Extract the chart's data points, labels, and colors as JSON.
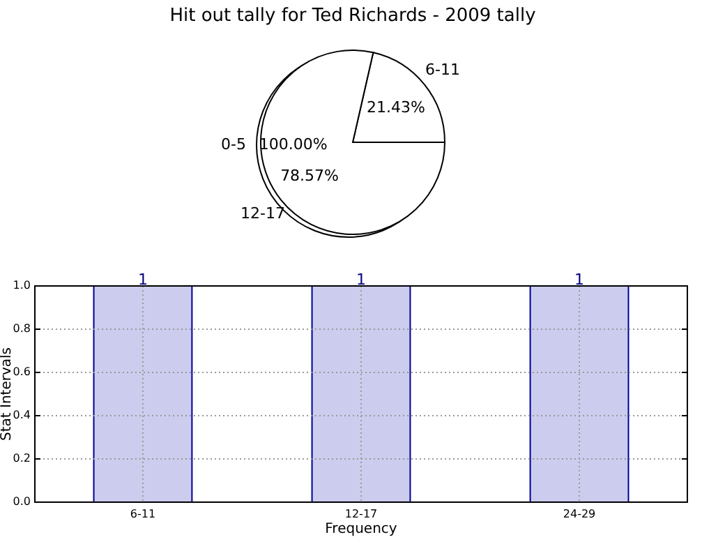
{
  "chart_data": [
    {
      "type": "pie",
      "title": "Hit out tally for Ted Richards - 2009 tally",
      "categories": [
        "0-5"
      ],
      "values": [
        100
      ],
      "value_labels": [
        "100.00%"
      ],
      "colors": [
        "#ffffff"
      ]
    },
    {
      "type": "pie",
      "categories": [
        "6-11",
        "12-17"
      ],
      "values": [
        21.43,
        78.57
      ],
      "value_labels": [
        "21.43%",
        "78.57%"
      ],
      "colors": [
        "#ffffff",
        "#ffffff"
      ]
    },
    {
      "type": "bar",
      "categories": [
        "6-11",
        "12-17",
        "24-29"
      ],
      "values": [
        1,
        1,
        1
      ],
      "color": "#ccccee",
      "xlabel": "Frequency",
      "ylabel": "Stat Intervals",
      "ylim": [
        0,
        1
      ],
      "yticks": [
        {
          "value": 0,
          "label": "0.0"
        },
        {
          "value": 0.2,
          "label": "0.2"
        },
        {
          "value": 0.4,
          "label": "0.4"
        },
        {
          "value": 0.6,
          "label": "0.6"
        },
        {
          "value": 0.8,
          "label": "0.8"
        },
        {
          "value": 1,
          "label": "1.0"
        }
      ],
      "grid": true,
      "data_labels": true
    }
  ]
}
